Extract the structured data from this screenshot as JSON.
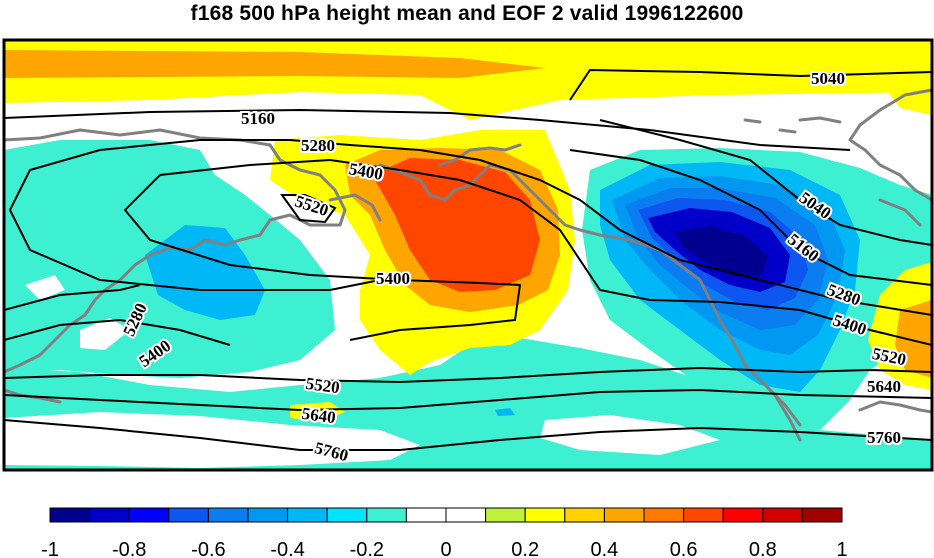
{
  "title": "f168 500 hPa height mean and EOF 2 valid 1996122600",
  "contour_labels": [
    "5040",
    "5040",
    "5160",
    "5160",
    "5280",
    "5280",
    "5280",
    "5400",
    "5400",
    "5400",
    "5400",
    "5520",
    "5520",
    "5520",
    "5640",
    "5640",
    "5760",
    "5760"
  ],
  "colorbar": {
    "tick_labels": [
      "-1",
      "-0.8",
      "-0.6",
      "-0.4",
      "-0.2",
      "0",
      "0.2",
      "0.4",
      "0.6",
      "0.8",
      "1"
    ],
    "colors": [
      "#00008f",
      "#0000c8",
      "#0000ff",
      "#0e56f0",
      "#0a7df0",
      "#0098f0",
      "#00b8f5",
      "#00e5ff",
      "#3df0d2",
      "#ffffff",
      "#ffffff",
      "#bff23d",
      "#ffff00",
      "#ffd200",
      "#ffa500",
      "#ff7800",
      "#ff4600",
      "#ff0000",
      "#d20000",
      "#a00000"
    ]
  },
  "colors": {
    "coast": "#808080",
    "contour": "#000000",
    "neg1": "#3df0d2",
    "neg2": "#00b8f5",
    "neg3": "#0098f0",
    "neg4": "#0a7df0",
    "neg5": "#0e56f0",
    "neg6": "#0000c8",
    "pos1": "#ffff00",
    "pos2": "#ffa500",
    "pos3": "#ff4600"
  }
}
